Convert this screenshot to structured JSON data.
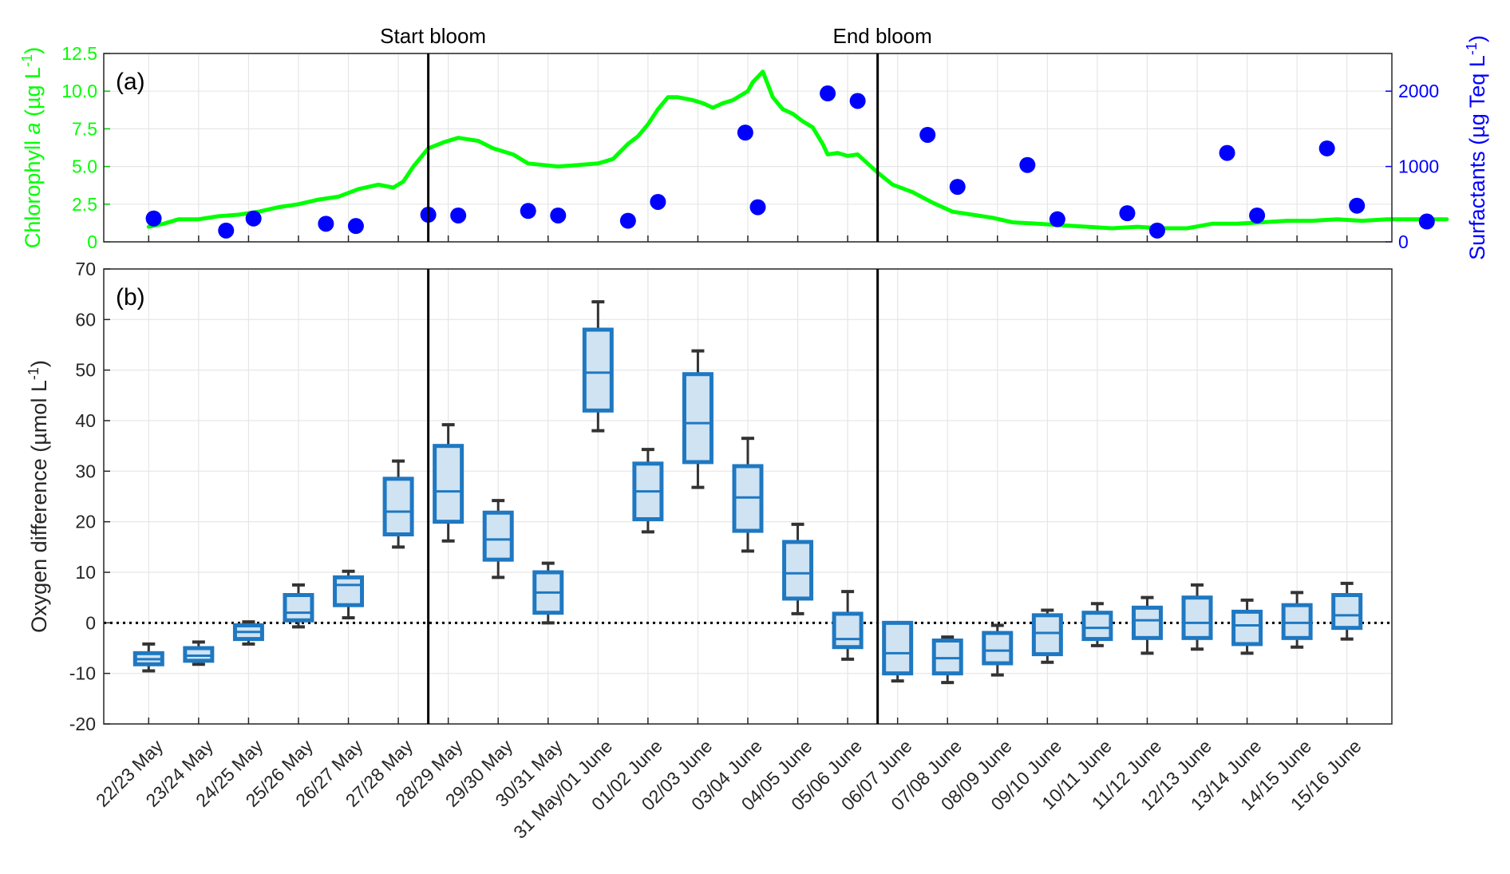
{
  "chart_data": [
    {
      "panel": "(a)",
      "type": "line",
      "left_axis_label": "Chlorophyll a (µg L-1)",
      "right_axis_label": "Surfactants (µg Teq L-1)",
      "left_ylim": [
        0,
        12.5
      ],
      "left_yticks": [
        "0",
        "2.5",
        "5.0",
        "7.5",
        "10.0",
        "12.5"
      ],
      "right_ylim": [
        0,
        2500
      ],
      "right_yticks": [
        "0",
        "1000",
        "2000"
      ],
      "colors": {
        "chlorophyll": "#00ff00",
        "surfactants": "#0000ff"
      },
      "grid": true,
      "annotations": [
        {
          "text": "Start bloom",
          "x": 5.6
        },
        {
          "text": "End bloom",
          "x": 14.6
        }
      ],
      "series": [
        {
          "name": "Chlorophyll a",
          "type": "line",
          "x": [
            0,
            0.3,
            0.6,
            1.0,
            1.4,
            1.8,
            2.2,
            2.6,
            3.0,
            3.4,
            3.8,
            4.2,
            4.6,
            4.9,
            5.1,
            5.3,
            5.6,
            5.9,
            6.2,
            6.6,
            6.9,
            7.3,
            7.6,
            7.9,
            8.2,
            8.6,
            9.0,
            9.3,
            9.6,
            9.8,
            10.0,
            10.2,
            10.4,
            10.6,
            10.9,
            11.1,
            11.3,
            11.5,
            11.7,
            11.9,
            12.0,
            12.1,
            12.3,
            12.5,
            12.7,
            12.9,
            13.1,
            13.3,
            13.5,
            13.6,
            13.8,
            14.0,
            14.2,
            14.4,
            14.6,
            14.9,
            15.3,
            15.7,
            16.1,
            16.5,
            16.9,
            17.3,
            17.8,
            18.3,
            18.8,
            19.3,
            19.8,
            20.3,
            20.8,
            21.3,
            21.8,
            22.3,
            22.8,
            23.3,
            23.8,
            24.3,
            24.8,
            25.3,
            25.8,
            26.0
          ],
          "y": [
            1.0,
            1.2,
            1.5,
            1.5,
            1.7,
            1.8,
            2.0,
            2.3,
            2.5,
            2.8,
            3.0,
            3.5,
            3.8,
            3.6,
            4.0,
            5.0,
            6.2,
            6.6,
            6.9,
            6.7,
            6.2,
            5.8,
            5.2,
            5.1,
            5.0,
            5.1,
            5.2,
            5.5,
            6.5,
            7.0,
            7.8,
            8.8,
            9.6,
            9.6,
            9.4,
            9.2,
            8.9,
            9.2,
            9.4,
            9.8,
            10.0,
            10.6,
            11.3,
            9.6,
            8.8,
            8.5,
            8.0,
            7.6,
            6.5,
            5.8,
            5.9,
            5.7,
            5.8,
            5.2,
            4.6,
            3.8,
            3.3,
            2.6,
            2.0,
            1.8,
            1.6,
            1.3,
            1.2,
            1.1,
            1.0,
            0.9,
            1.0,
            0.9,
            0.9,
            1.2,
            1.2,
            1.3,
            1.4,
            1.4,
            1.5,
            1.4,
            1.5,
            1.5,
            1.5,
            1.5
          ]
        },
        {
          "name": "Surfactants",
          "type": "scatter",
          "axis": "right",
          "x": [
            0.1,
            1.55,
            2.1,
            3.55,
            4.15,
            5.6,
            6.2,
            7.6,
            8.2,
            9.6,
            10.2,
            11.95,
            12.2,
            13.6,
            14.2,
            15.6,
            16.2,
            17.6,
            18.2,
            19.6,
            20.2,
            21.6,
            22.2,
            23.6,
            24.2,
            25.6
          ],
          "y": [
            310,
            150,
            310,
            240,
            210,
            360,
            350,
            410,
            350,
            280,
            530,
            1450,
            460,
            1970,
            1870,
            1420,
            730,
            1020,
            300,
            380,
            150,
            1180,
            350,
            1240,
            480,
            270
          ]
        }
      ]
    },
    {
      "panel": "(b)",
      "type": "box",
      "ylabel": "Oxygen difference (µmol L-1)",
      "ylim": [
        -20,
        70
      ],
      "yticks": [
        "-20",
        "-10",
        "0",
        "10",
        "20",
        "30",
        "40",
        "50",
        "60",
        "70"
      ],
      "grid": true,
      "zero_line": "dotted",
      "box_edge_color": "#1f78c1",
      "box_fill_color": "#cfe3f3",
      "categories": [
        "22/23 May",
        "23/24 May",
        "24/25 May",
        "25/26 May",
        "26/27 May",
        "27/28 May",
        "28/29 May",
        "29/30 May",
        "30/31 May",
        "31 May/01 June",
        "01/02 June",
        "02/03 June",
        "03/04 June",
        "04/05 June",
        "05/06 June",
        "06/07 June",
        "07/08 June",
        "08/09 June",
        "09/10 June",
        "10/11 June",
        "11/12 June",
        "12/13 June",
        "13/14 June",
        "14/15 June",
        "15/16 June"
      ],
      "boxes": [
        {
          "min": -9.5,
          "q1": -8.2,
          "median": -7.2,
          "q3": -6.0,
          "max": -4.2
        },
        {
          "min": -8.2,
          "q1": -7.5,
          "median": -6.5,
          "q3": -5.0,
          "max": -3.8
        },
        {
          "min": -4.2,
          "q1": -3.2,
          "median": -1.8,
          "q3": -0.5,
          "max": 0.2
        },
        {
          "min": -0.8,
          "q1": 0.5,
          "median": 2.0,
          "q3": 5.5,
          "max": 7.5
        },
        {
          "min": 1.0,
          "q1": 3.5,
          "median": 7.5,
          "q3": 9.0,
          "max": 10.2
        },
        {
          "min": 15.0,
          "q1": 17.5,
          "median": 22.0,
          "q3": 28.5,
          "max": 32.0
        },
        {
          "min": 16.2,
          "q1": 20.0,
          "median": 26.0,
          "q3": 35.0,
          "max": 39.2
        },
        {
          "min": 9.0,
          "q1": 12.5,
          "median": 16.5,
          "q3": 21.8,
          "max": 24.2
        },
        {
          "min": 0.0,
          "q1": 2.0,
          "median": 6.0,
          "q3": 10.0,
          "max": 11.8
        },
        {
          "min": 38.0,
          "q1": 42.0,
          "median": 49.5,
          "q3": 58.0,
          "max": 63.5
        },
        {
          "min": 18.0,
          "q1": 20.5,
          "median": 26.0,
          "q3": 31.5,
          "max": 34.3
        },
        {
          "min": 26.8,
          "q1": 31.8,
          "median": 39.5,
          "q3": 49.2,
          "max": 53.8
        },
        {
          "min": 14.2,
          "q1": 18.2,
          "median": 24.8,
          "q3": 31.0,
          "max": 36.5
        },
        {
          "min": 1.8,
          "q1": 4.8,
          "median": 9.8,
          "q3": 16.0,
          "max": 19.5
        },
        {
          "min": -7.2,
          "q1": -4.8,
          "median": -3.2,
          "q3": 1.8,
          "max": 6.2
        },
        {
          "min": -11.5,
          "q1": -10.0,
          "median": -6.0,
          "q3": 0.0,
          "max": 0.0
        },
        {
          "min": -11.8,
          "q1": -10.0,
          "median": -7.0,
          "q3": -3.5,
          "max": -2.8
        },
        {
          "min": -10.3,
          "q1": -8.0,
          "median": -5.5,
          "q3": -2.0,
          "max": -0.5
        },
        {
          "min": -7.8,
          "q1": -6.2,
          "median": -2.0,
          "q3": 1.5,
          "max": 2.5
        },
        {
          "min": -4.5,
          "q1": -3.2,
          "median": -1.0,
          "q3": 2.0,
          "max": 3.8
        },
        {
          "min": -6.0,
          "q1": -3.0,
          "median": 0.5,
          "q3": 3.0,
          "max": 5.0
        },
        {
          "min": -5.2,
          "q1": -3.0,
          "median": 0.0,
          "q3": 5.0,
          "max": 7.5
        },
        {
          "min": -6.0,
          "q1": -4.2,
          "median": -0.5,
          "q3": 2.2,
          "max": 4.5
        },
        {
          "min": -4.8,
          "q1": -3.0,
          "median": 0.0,
          "q3": 3.5,
          "max": 6.0
        },
        {
          "min": -3.2,
          "q1": -1.0,
          "median": 1.5,
          "q3": 5.5,
          "max": 7.8
        }
      ]
    }
  ]
}
